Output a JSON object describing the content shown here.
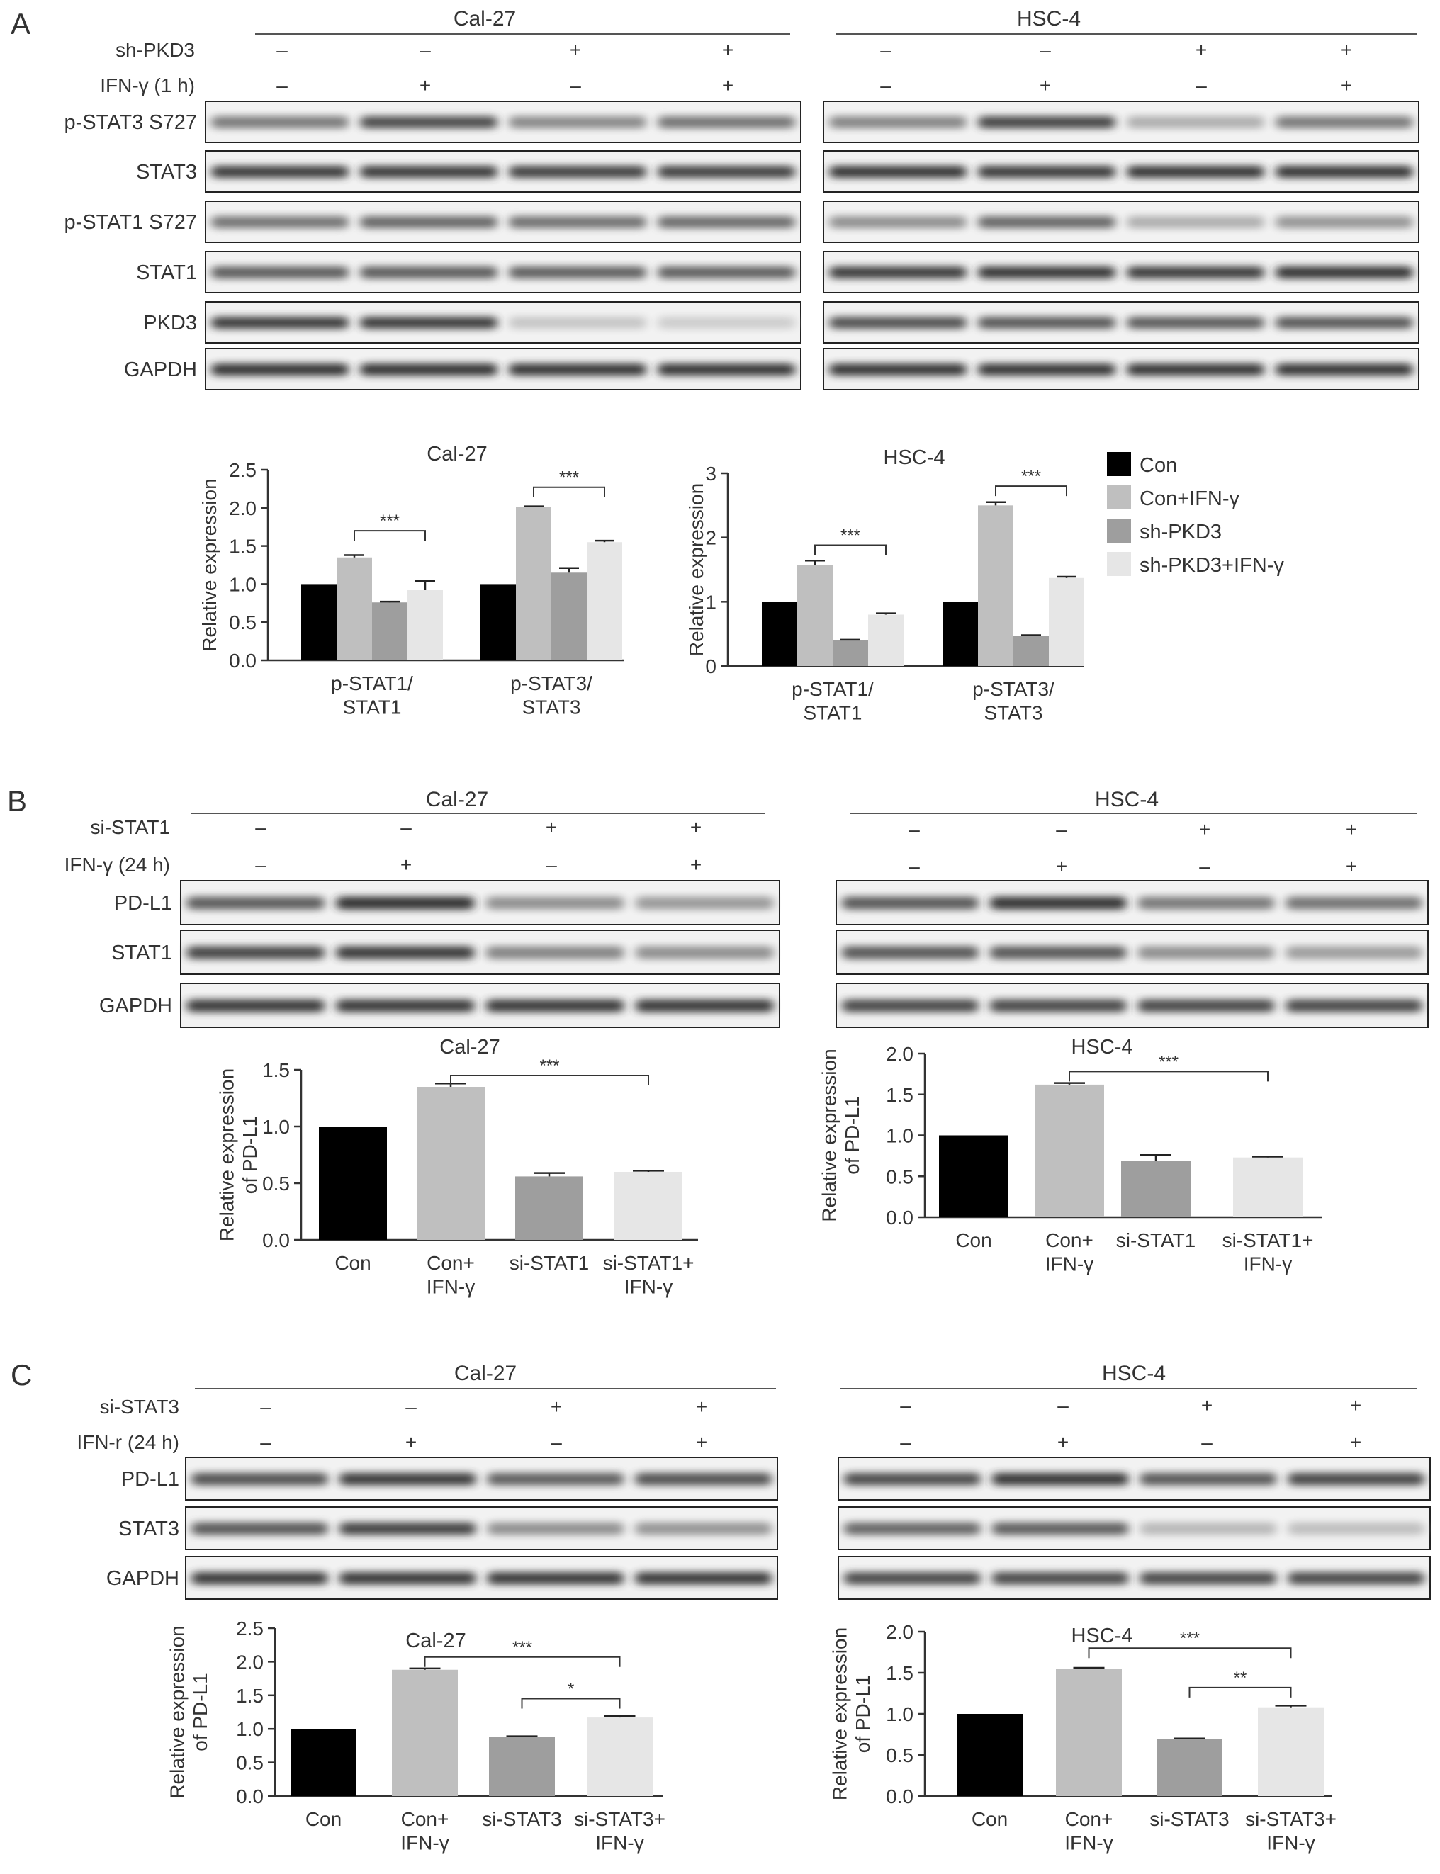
{
  "panelA": {
    "letter": "A",
    "cal": {
      "title": "Cal-27",
      "treatment_rows": [
        {
          "label": "sh-PKD3",
          "signs": [
            "–",
            "–",
            "+",
            "+"
          ]
        },
        {
          "label": "IFN-γ (1 h)",
          "signs": [
            "–",
            "+",
            "–",
            "+"
          ]
        }
      ],
      "blots": [
        {
          "label": "p-STAT3 S727",
          "intensity": [
            0.55,
            0.78,
            0.48,
            0.58
          ]
        },
        {
          "label": "STAT3",
          "intensity": [
            0.85,
            0.85,
            0.83,
            0.83
          ]
        },
        {
          "label": "p-STAT1 S727",
          "intensity": [
            0.58,
            0.65,
            0.6,
            0.62
          ]
        },
        {
          "label": "STAT1",
          "intensity": [
            0.7,
            0.7,
            0.68,
            0.68
          ]
        },
        {
          "label": "PKD3",
          "intensity": [
            0.85,
            0.85,
            0.18,
            0.15
          ]
        },
        {
          "label": "GAPDH",
          "intensity": [
            0.9,
            0.9,
            0.88,
            0.88
          ]
        }
      ]
    },
    "hsc": {
      "title": "HSC-4",
      "treatment_rows": [
        {
          "label": "sh-PKD3",
          "signs": [
            "–",
            "–",
            "+",
            "+"
          ]
        },
        {
          "label": "IFN-γ (1 h)",
          "signs": [
            "–",
            "+",
            "–",
            "+"
          ]
        }
      ],
      "blots": [
        {
          "label": "p-STAT3 S727",
          "intensity": [
            0.5,
            0.82,
            0.3,
            0.55
          ]
        },
        {
          "label": "STAT3",
          "intensity": [
            0.88,
            0.85,
            0.88,
            0.88
          ]
        },
        {
          "label": "p-STAT1 S727",
          "intensity": [
            0.45,
            0.65,
            0.3,
            0.42
          ]
        },
        {
          "label": "STAT1",
          "intensity": [
            0.85,
            0.88,
            0.85,
            0.9
          ]
        },
        {
          "label": "PKD3",
          "intensity": [
            0.75,
            0.72,
            0.7,
            0.72
          ]
        },
        {
          "label": "GAPDH",
          "intensity": [
            0.88,
            0.88,
            0.88,
            0.88
          ]
        }
      ]
    },
    "legend": [
      "Con",
      "Con+IFN-γ",
      "sh-PKD3",
      "sh-PKD3+IFN-γ"
    ]
  },
  "panelB": {
    "letter": "B",
    "cal": {
      "title": "Cal-27",
      "treatment_rows": [
        {
          "label": "si-STAT1",
          "signs": [
            "–",
            "–",
            "+",
            "+"
          ]
        },
        {
          "label": "IFN-γ (24 h)",
          "signs": [
            "–",
            "+",
            "–",
            "+"
          ]
        }
      ],
      "blots": [
        {
          "label": "PD-L1",
          "intensity": [
            0.7,
            0.92,
            0.45,
            0.4
          ]
        },
        {
          "label": "STAT1",
          "intensity": [
            0.8,
            0.85,
            0.5,
            0.45
          ]
        },
        {
          "label": "GAPDH",
          "intensity": [
            0.85,
            0.85,
            0.85,
            0.85
          ]
        }
      ]
    },
    "hsc": {
      "title": "HSC-4",
      "treatment_rows": [
        {
          "label": "",
          "signs": [
            "–",
            "–",
            "+",
            "+"
          ]
        },
        {
          "label": "",
          "signs": [
            "–",
            "+",
            "–",
            "+"
          ]
        }
      ],
      "blots": [
        {
          "label": "",
          "intensity": [
            0.72,
            0.9,
            0.55,
            0.58
          ]
        },
        {
          "label": "",
          "intensity": [
            0.72,
            0.72,
            0.45,
            0.38
          ]
        },
        {
          "label": "",
          "intensity": [
            0.78,
            0.78,
            0.78,
            0.78
          ]
        }
      ]
    }
  },
  "panelC": {
    "letter": "C",
    "cal": {
      "title": "Cal-27",
      "treatment_rows": [
        {
          "label": "si-STAT3",
          "signs": [
            "–",
            "–",
            "+",
            "+"
          ]
        },
        {
          "label": "IFN-r (24 h)",
          "signs": [
            "–",
            "+",
            "–",
            "+"
          ]
        }
      ],
      "blots": [
        {
          "label": "PD-L1",
          "intensity": [
            0.75,
            0.85,
            0.68,
            0.75
          ]
        },
        {
          "label": "STAT3",
          "intensity": [
            0.72,
            0.82,
            0.45,
            0.42
          ]
        },
        {
          "label": "GAPDH",
          "intensity": [
            0.85,
            0.85,
            0.85,
            0.85
          ]
        }
      ]
    },
    "hsc": {
      "title": "HSC-4",
      "treatment_rows": [
        {
          "label": "",
          "signs": [
            "–",
            "–",
            "+",
            "+"
          ]
        },
        {
          "label": "",
          "signs": [
            "–",
            "+",
            "–",
            "+"
          ]
        }
      ],
      "blots": [
        {
          "label": "",
          "intensity": [
            0.78,
            0.88,
            0.72,
            0.8
          ]
        },
        {
          "label": "",
          "intensity": [
            0.65,
            0.68,
            0.25,
            0.22
          ]
        },
        {
          "label": "",
          "intensity": [
            0.78,
            0.78,
            0.78,
            0.78
          ]
        }
      ]
    }
  },
  "colors": {
    "con": "#000000",
    "con_ifn": "#bfbfbf",
    "kd": "#9e9e9e",
    "kd_ifn": "#e6e6e6"
  },
  "chart_data": [
    {
      "type": "bar",
      "title": "Cal-27",
      "ylabel": "Relative expression",
      "categories": [
        "p-STAT1/ STAT1",
        "p-STAT3/ STAT3"
      ],
      "ylim": [
        0,
        2.5
      ],
      "yticks": [
        "0.0",
        "0.5",
        "1.0",
        "1.5",
        "2.0",
        "2.5"
      ],
      "series": [
        {
          "name": "Con",
          "values": [
            1.0,
            1.0
          ],
          "err": [
            0,
            0
          ]
        },
        {
          "name": "Con+IFN-γ",
          "values": [
            1.35,
            2.01
          ],
          "err": [
            0.03,
            0.01
          ]
        },
        {
          "name": "sh-PKD3",
          "values": [
            0.76,
            1.15
          ],
          "err": [
            0.01,
            0.06
          ]
        },
        {
          "name": "sh-PKD3+IFN-γ",
          "values": [
            0.92,
            1.55
          ],
          "err": [
            0.12,
            0.02
          ]
        }
      ],
      "annotations": [
        "***",
        "***"
      ]
    },
    {
      "type": "bar",
      "title": "HSC-4",
      "ylabel": "Relative expression",
      "categories": [
        "p-STAT1/ STAT1",
        "p-STAT3/ STAT3"
      ],
      "ylim": [
        0,
        3
      ],
      "yticks": [
        "0",
        "1",
        "2",
        "3"
      ],
      "series": [
        {
          "name": "Con",
          "values": [
            1.0,
            1.0
          ],
          "err": [
            0,
            0
          ]
        },
        {
          "name": "Con+IFN-γ",
          "values": [
            1.57,
            2.5
          ],
          "err": [
            0.07,
            0.05
          ]
        },
        {
          "name": "sh-PKD3",
          "values": [
            0.4,
            0.47
          ],
          "err": [
            0.01,
            0.01
          ]
        },
        {
          "name": "sh-PKD3+IFN-γ",
          "values": [
            0.8,
            1.37
          ],
          "err": [
            0.02,
            0.02
          ]
        }
      ],
      "annotations": [
        "***",
        "***"
      ]
    },
    {
      "type": "bar",
      "title": "Cal-27",
      "ylabel": "Relative expression of PD-L1",
      "categories": [
        "Con",
        "Con+ IFN-γ",
        "si-STAT1",
        "si-STAT1+ IFN-γ"
      ],
      "ylim": [
        0,
        1.5
      ],
      "yticks": [
        "0.0",
        "0.5",
        "1.0",
        "1.5"
      ],
      "values": [
        1.0,
        1.35,
        0.56,
        0.6
      ],
      "err": [
        0,
        0.03,
        0.03,
        0.01
      ],
      "annotations": [
        "***"
      ]
    },
    {
      "type": "bar",
      "title": "HSC-4",
      "ylabel": "Relative expression of PD-L1",
      "categories": [
        "Con",
        "Con+ IFN-γ",
        "si-STAT1",
        "si-STAT1+ IFN-γ"
      ],
      "ylim": [
        0,
        2.0
      ],
      "yticks": [
        "0.0",
        "0.5",
        "1.0",
        "1.5",
        "2.0"
      ],
      "values": [
        1.0,
        1.62,
        0.69,
        0.73
      ],
      "err": [
        0,
        0.02,
        0.07,
        0.01
      ],
      "annotations": [
        "***"
      ]
    },
    {
      "type": "bar",
      "title": "Cal-27",
      "ylabel": "Relative expression of PD-L1",
      "categories": [
        "Con",
        "Con+ IFN-γ",
        "si-STAT3",
        "si-STAT3+ IFN-γ"
      ],
      "ylim": [
        0,
        2.5
      ],
      "yticks": [
        "0.0",
        "0.5",
        "1.0",
        "1.5",
        "2.0",
        "2.5"
      ],
      "values": [
        1.0,
        1.88,
        0.88,
        1.17
      ],
      "err": [
        0,
        0.02,
        0.01,
        0.02
      ],
      "annotations": [
        "***",
        "*"
      ]
    },
    {
      "type": "bar",
      "title": "HSC-4",
      "ylabel": "Relative expression of PD-L1",
      "categories": [
        "Con",
        "Con+ IFN-γ",
        "si-STAT3",
        "si-STAT3+ IFN-γ"
      ],
      "ylim": [
        0,
        2.0
      ],
      "yticks": [
        "0.0",
        "0.5",
        "1.0",
        "1.5",
        "2.0"
      ],
      "values": [
        1.0,
        1.55,
        0.69,
        1.08
      ],
      "err": [
        0,
        0.01,
        0.01,
        0.02
      ],
      "annotations": [
        "***",
        "**"
      ]
    }
  ]
}
